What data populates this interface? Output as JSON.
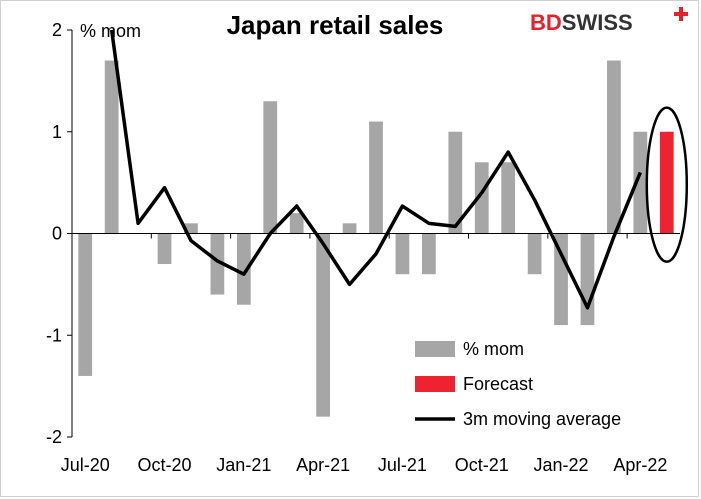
{
  "logo": {
    "text_a": "BD",
    "text_b": "SWISS",
    "color_a": "#e8202a",
    "color_b": "#333333",
    "icon": "swiss-cross-icon"
  },
  "chart_data": {
    "type": "bar",
    "title": "Japan retail sales",
    "ylabel": "% mom",
    "xlabel": "",
    "ylim": [
      -2,
      2
    ],
    "yticks": [
      -2,
      -1,
      0,
      1,
      2
    ],
    "grid": false,
    "legend_position": "bottom-right",
    "categories": [
      "Jul-20",
      "Aug-20",
      "Sep-20",
      "Oct-20",
      "Nov-20",
      "Dec-20",
      "Jan-21",
      "Feb-21",
      "Mar-21",
      "Apr-21",
      "May-21",
      "Jun-21",
      "Jul-21",
      "Aug-21",
      "Sep-21",
      "Oct-21",
      "Nov-21",
      "Dec-21",
      "Jan-22",
      "Feb-22",
      "Mar-22",
      "Apr-22",
      "May-22"
    ],
    "xtick_labels": [
      {
        "index": 0,
        "label": "Jul-20"
      },
      {
        "index": 3,
        "label": "Oct-20"
      },
      {
        "index": 6,
        "label": "Jan-21"
      },
      {
        "index": 9,
        "label": "Apr-21"
      },
      {
        "index": 12,
        "label": "Jul-21"
      },
      {
        "index": 15,
        "label": "Oct-21"
      },
      {
        "index": 18,
        "label": "Jan-22"
      },
      {
        "index": 21,
        "label": "Apr-22"
      }
    ],
    "series": [
      {
        "name": "% mom",
        "type": "bar",
        "color": "#a6a6a6",
        "values": [
          -1.4,
          1.7,
          null,
          -0.3,
          0.1,
          -0.6,
          -0.7,
          1.3,
          0.2,
          -1.8,
          0.1,
          1.1,
          -0.4,
          -0.4,
          1.0,
          0.7,
          0.7,
          -0.4,
          -0.9,
          -0.9,
          1.7,
          1.0,
          null
        ]
      },
      {
        "name": "Forecast",
        "type": "bar",
        "color": "#ee2230",
        "values": [
          null,
          null,
          null,
          null,
          null,
          null,
          null,
          null,
          null,
          null,
          null,
          null,
          null,
          null,
          null,
          null,
          null,
          null,
          null,
          null,
          null,
          null,
          1.0
        ]
      },
      {
        "name": "3m moving average",
        "type": "line",
        "color": "#000000",
        "values": [
          null,
          2.0,
          0.1,
          0.45,
          -0.07,
          -0.27,
          -0.4,
          0.0,
          0.27,
          -0.1,
          -0.5,
          -0.2,
          0.27,
          0.1,
          0.07,
          0.4,
          0.8,
          0.33,
          -0.2,
          -0.73,
          -0.03,
          0.6,
          null
        ]
      }
    ],
    "legend": [
      {
        "label": "% mom",
        "kind": "bar",
        "color": "#a6a6a6"
      },
      {
        "label": "Forecast",
        "kind": "bar",
        "color": "#ee2230"
      },
      {
        "label": "3m moving average",
        "kind": "line",
        "color": "#000000"
      }
    ],
    "annotation": {
      "kind": "ellipse",
      "target_category": "May-22",
      "color": "#000000"
    }
  }
}
